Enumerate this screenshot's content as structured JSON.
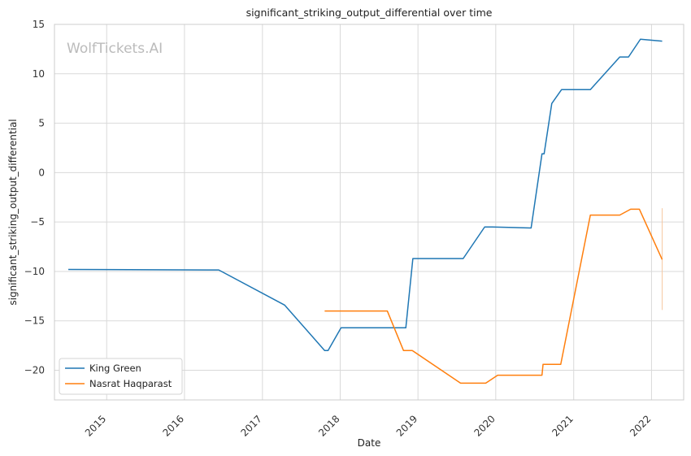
{
  "chart_data": {
    "type": "line",
    "title": "significant_striking_output_differential over time",
    "xlabel": "Date",
    "ylabel": "significant_striking_output_differential",
    "watermark": "WolfTickets.AI",
    "x_range": [
      "2014-05-01",
      "2022-06-01"
    ],
    "ylim": [
      -23,
      15
    ],
    "x_ticks": [
      "2015",
      "2016",
      "2017",
      "2018",
      "2019",
      "2020",
      "2021",
      "2022"
    ],
    "y_ticks": [
      15,
      10,
      5,
      0,
      -5,
      -10,
      -15,
      -20
    ],
    "y_tick_labels": [
      "15",
      "10",
      "5",
      "0",
      "−5",
      "−10",
      "−15",
      "−20"
    ],
    "grid": true,
    "legend_position": "lower-left",
    "series": [
      {
        "name": "King Green",
        "color": "#1f77b4",
        "points": [
          [
            "2014-07-05",
            -9.8
          ],
          [
            "2016-06-10",
            -9.85
          ],
          [
            "2017-04-15",
            -13.4
          ],
          [
            "2017-10-20",
            -18.0
          ],
          [
            "2017-11-05",
            -18.0
          ],
          [
            "2018-01-05",
            -15.7
          ],
          [
            "2018-11-05",
            -15.7
          ],
          [
            "2018-12-08",
            -8.7
          ],
          [
            "2019-08-01",
            -8.7
          ],
          [
            "2019-11-10",
            -5.5
          ],
          [
            "2019-12-15",
            -5.5
          ],
          [
            "2020-06-15",
            -5.6
          ],
          [
            "2020-08-05",
            1.9
          ],
          [
            "2020-08-15",
            1.9
          ],
          [
            "2020-09-20",
            7.0
          ],
          [
            "2020-11-05",
            8.4
          ],
          [
            "2021-03-20",
            8.4
          ],
          [
            "2021-08-05",
            11.7
          ],
          [
            "2021-09-15",
            11.7
          ],
          [
            "2021-11-10",
            13.5
          ],
          [
            "2022-02-20",
            13.3
          ]
        ]
      },
      {
        "name": "Nasrat Haqparast",
        "color": "#ff7f0e",
        "points": [
          [
            "2017-10-20",
            -14.0
          ],
          [
            "2018-08-10",
            -14.0
          ],
          [
            "2018-10-25",
            -18.0
          ],
          [
            "2018-12-05",
            -18.0
          ],
          [
            "2019-07-20",
            -21.3
          ],
          [
            "2019-11-15",
            -21.3
          ],
          [
            "2020-01-10",
            -20.5
          ],
          [
            "2020-08-05",
            -20.5
          ],
          [
            "2020-08-10",
            -19.4
          ],
          [
            "2020-11-01",
            -19.4
          ],
          [
            "2021-03-20",
            -4.3
          ],
          [
            "2021-08-05",
            -4.3
          ],
          [
            "2021-09-25",
            -3.7
          ],
          [
            "2021-11-05",
            -3.7
          ],
          [
            "2022-02-20",
            -8.8
          ]
        ]
      }
    ],
    "error_bar": {
      "series": "Nasrat Haqparast",
      "x": "2022-02-20",
      "y_low": -13.9,
      "y_high": -3.6,
      "color": "#f6c8a4"
    }
  }
}
